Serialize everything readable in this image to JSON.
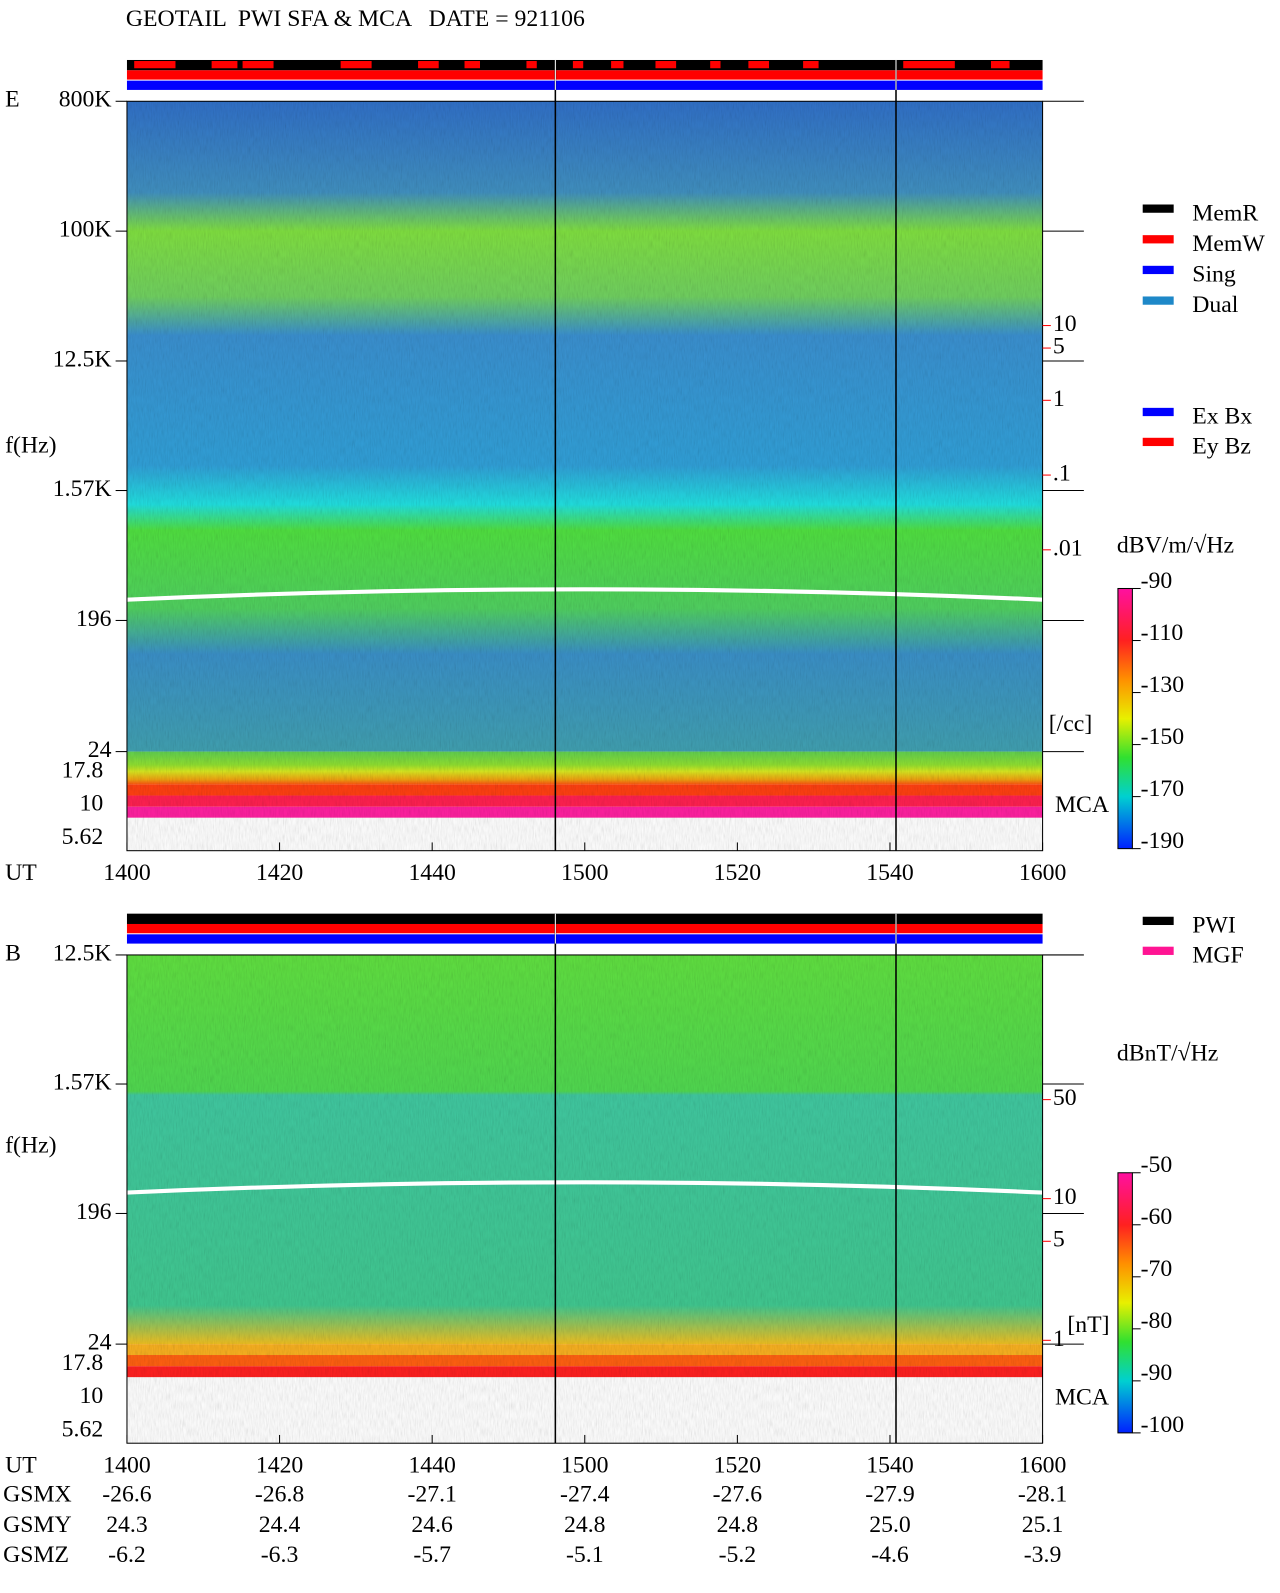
{
  "title": "GEOTAIL  PWI SFA & MCA   DATE = 921106",
  "mem_legend": [
    {
      "name": "MemR",
      "color": "#000000"
    },
    {
      "name": "MemW",
      "color": "#ff0000"
    },
    {
      "name": "Sing",
      "color": "#0000ff"
    },
    {
      "name": "Dual",
      "color": "#1e88c8"
    }
  ],
  "chart_data": [
    {
      "type": "spectrogram",
      "panel_label": "E",
      "ylabel": "f(Hz)",
      "xlabel": "UT",
      "log_y": true,
      "ylim": [
        24,
        800000
      ],
      "yticks": [
        {
          "value": 800000,
          "label": "800K"
        },
        {
          "value": 100000,
          "label": "100K"
        },
        {
          "value": 12500,
          "label": "12.5K"
        },
        {
          "value": 1570,
          "label": "1.57K"
        },
        196,
        24
      ],
      "mca_label": "MCA",
      "mca_channels": [
        "17.8",
        "10",
        "5.62"
      ],
      "categories": [
        "1400",
        "1420",
        "1440",
        "1500",
        "1520",
        "1540",
        "1600"
      ],
      "y2lim": [
        2e-05,
        10000
      ],
      "y2ticks": [
        10,
        5,
        1,
        {
          "value": 0.1,
          "label": ".1"
        },
        {
          "value": 0.01,
          "label": ".01"
        }
      ],
      "y2label": "[/cc]",
      "y2color": "#ff0000",
      "colorbar": {
        "label": "dBV/m/√Hz",
        "lim": [
          -190,
          -90
        ],
        "ticks": [
          -90,
          -110,
          -130,
          -150,
          -170,
          -190
        ]
      },
      "legend": [
        {
          "name": "Ex Bx",
          "color": "#0000ff"
        },
        {
          "name": "Ey Bz",
          "color": "#ff0000"
        }
      ]
    },
    {
      "type": "spectrogram",
      "panel_label": "B",
      "ylabel": "f(Hz)",
      "xlabel": "UT",
      "log_y": true,
      "ylim": [
        24,
        12500
      ],
      "yticks": [
        {
          "value": 12500,
          "label": "12.5K"
        },
        {
          "value": 1570,
          "label": "1.57K"
        },
        196,
        24
      ],
      "mca_label": "MCA",
      "mca_channels": [
        "17.8",
        "10",
        "5.62"
      ],
      "categories": [
        "1400",
        "1420",
        "1440",
        "1500",
        "1520",
        "1540",
        "1600"
      ],
      "y2lim": [
        0.94,
        525
      ],
      "y2ticks": [
        50,
        10,
        5,
        1
      ],
      "y2label": "[nT]",
      "y2color": "#ff0000",
      "colorbar": {
        "label": "dBnT/√Hz",
        "lim": [
          -100,
          -50
        ],
        "ticks": [
          -50,
          -60,
          -70,
          -80,
          -90,
          -100
        ]
      },
      "legend": [
        {
          "name": "PWI",
          "color": "#000000"
        },
        {
          "name": "MGF",
          "color": "#ff1493"
        }
      ]
    }
  ],
  "orbit": {
    "rows": [
      {
        "label": "GSMX",
        "values": [
          -26.6,
          -26.8,
          -27.1,
          -27.4,
          -27.6,
          -27.9,
          -28.1
        ]
      },
      {
        "label": "GSMY",
        "values": [
          24.3,
          24.4,
          24.6,
          24.8,
          24.8,
          25.0,
          25.1
        ]
      },
      {
        "label": "GSMZ",
        "values": [
          -6.2,
          -6.3,
          -5.7,
          -5.1,
          -5.2,
          -4.6,
          -3.9
        ]
      }
    ]
  }
}
